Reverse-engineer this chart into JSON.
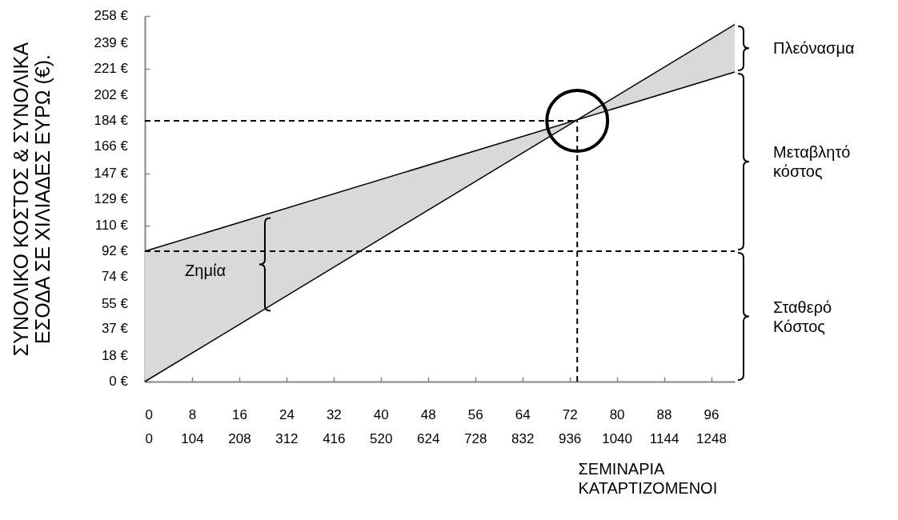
{
  "chart_data": {
    "type": "line",
    "ylabel": "ΣΥΝΟΛΙΚΟ ΚΟΣΤΟΣ & ΣΥΝΟΛΙΚΑ ΕΣΟΔΑ ΣΕ ΧΙΛΙΑΔΕΣ ΕΥΡΩ (€).",
    "xlabel": "ΣΕΜΙΝΑΡΙΑ",
    "x2label": "ΚΑΤΑΡΤΙΖΟΜΕΝΟΙ",
    "x": [
      0,
      100
    ],
    "series": [
      {
        "color": "#000000",
        "values": [
          0,
          252
        ],
        "lower": [
          0,
          252
        ],
        "upper": [
          92,
          218.5
        ]
      },
      {
        "color": "#000000",
        "values": [
          92,
          218.5
        ]
      }
    ],
    "xlim": [
      0,
      100
    ],
    "xticks": [
      0,
      8,
      16,
      24,
      32,
      40,
      48,
      56,
      64,
      72,
      80,
      88,
      96
    ],
    "x2lim": [
      0,
      1300
    ],
    "x2ticks": [
      0,
      104,
      208,
      312,
      416,
      520,
      624,
      728,
      832,
      936,
      1040,
      1144,
      1248
    ],
    "ylim": [
      0,
      258
    ],
    "yticks": [
      {
        "value": 0,
        "label": "0 €"
      },
      {
        "value": 18,
        "label": "18 €"
      },
      {
        "value": 37,
        "label": "37 €"
      },
      {
        "value": 55,
        "label": "55 €"
      },
      {
        "value": 74,
        "label": "74 €"
      },
      {
        "value": 92,
        "label": "92 €"
      },
      {
        "value": 110,
        "label": "110 €"
      },
      {
        "value": 129,
        "label": "129 €"
      },
      {
        "value": 147,
        "label": "147 €"
      },
      {
        "value": 166,
        "label": "166 €"
      },
      {
        "value": 184,
        "label": "184 €"
      },
      {
        "value": 202,
        "label": "202 €"
      },
      {
        "value": 221,
        "label": "221 €"
      },
      {
        "value": 239,
        "label": "239 €"
      },
      {
        "value": 258,
        "label": "258 €"
      }
    ],
    "ref_lines": [
      {
        "axis": "y",
        "value": 92,
        "color": "#000000",
        "line_style": "dashed"
      },
      {
        "axis": "y",
        "value": 184,
        "color": "#000000",
        "line_style": "dashed"
      },
      {
        "axis": "x",
        "value": 73.3,
        "color": "#000000",
        "line_style": "dashed"
      }
    ],
    "annotations": [
      "Πλεόνασμα",
      "Μεταβλητό κόστος",
      "Σταθερό Κόστος",
      "Ζημία"
    ],
    "grid": false
  }
}
